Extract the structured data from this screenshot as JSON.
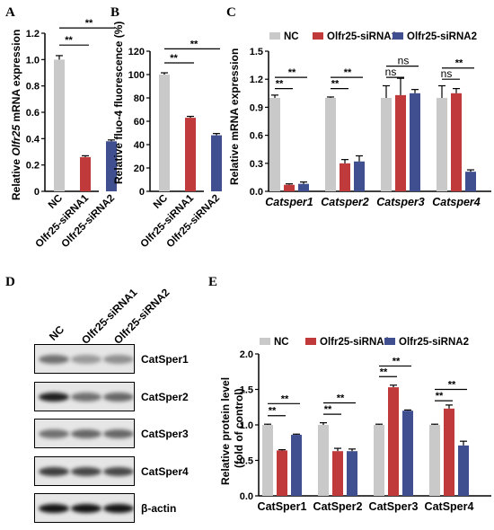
{
  "colors": {
    "nc": "#c9c9c9",
    "si1": "#c0393b",
    "si2": "#3f4f8f",
    "sig": "#000000"
  },
  "panels": {
    "A": "A",
    "B": "B",
    "C": "C",
    "D": "D",
    "E": "E"
  },
  "chart_data": [
    {
      "id": "A",
      "type": "bar",
      "categories": [
        "NC",
        "Olfr25-siRNA1",
        "Olfr25-siRNA2"
      ],
      "values": [
        1.0,
        0.26,
        0.38
      ],
      "errors": [
        0.03,
        0.01,
        0.01
      ],
      "ylabel_pre": "Relative ",
      "ylabel_italic": "Olfr25",
      "ylabel_post": " mRNA expression",
      "ylim": [
        0,
        1.2
      ],
      "yticks": [
        "0",
        "0.2",
        "0.4",
        "0.6",
        "0.8",
        "1.0",
        "1.2"
      ],
      "significance": [
        "**",
        "**"
      ]
    },
    {
      "id": "B",
      "type": "bar",
      "categories": [
        "NC",
        "Olfr25-siRNA1",
        "Olfr25-siRNA2"
      ],
      "values": [
        100,
        63,
        48
      ],
      "errors": [
        1.5,
        1.2,
        1.5
      ],
      "ylabel": "Relative fluo-4 fluorescence (%)",
      "ylim": [
        0,
        120
      ],
      "yticks": [
        "0",
        "20",
        "40",
        "60",
        "80",
        "100",
        "120"
      ],
      "significance": [
        "**",
        "**"
      ]
    },
    {
      "id": "C",
      "type": "bar",
      "categories": [
        "Catsper1",
        "Catsper2",
        "Catsper3",
        "Catsper4"
      ],
      "series": [
        {
          "name": "NC",
          "values": [
            1.0,
            1.0,
            1.0,
            1.0
          ],
          "errors": [
            0.03,
            0.01,
            0.13,
            0.13
          ]
        },
        {
          "name": "Olfr25-siRNA1",
          "values": [
            0.07,
            0.3,
            1.03,
            1.05
          ],
          "errors": [
            0.01,
            0.04,
            0.18,
            0.05
          ]
        },
        {
          "name": "Olfr25-siRNA2",
          "values": [
            0.08,
            0.32,
            1.05,
            0.21
          ],
          "errors": [
            0.02,
            0.06,
            0.04,
            0.02
          ]
        }
      ],
      "ylabel": "Relative mRNA expression",
      "ylim": [
        0,
        1.5
      ],
      "yticks": [
        "0.0",
        "0.3",
        "0.6",
        "0.9",
        "1.2",
        "1.5"
      ],
      "significance": [
        [
          "**",
          "**"
        ],
        [
          "**",
          "**"
        ],
        [
          "ns",
          "ns"
        ],
        [
          "ns",
          "**"
        ]
      ]
    },
    {
      "id": "E",
      "type": "bar",
      "categories": [
        "CatSper1",
        "CatSper2",
        "CatSper3",
        "CatSper4"
      ],
      "series": [
        {
          "name": "NC",
          "values": [
            1.0,
            1.0,
            1.0,
            1.0
          ],
          "errors": [
            0.01,
            0.03,
            0.01,
            0.01
          ]
        },
        {
          "name": "Olfr25-siRNA1",
          "values": [
            0.64,
            0.63,
            1.53,
            1.23
          ],
          "errors": [
            0.01,
            0.04,
            0.03,
            0.05
          ]
        },
        {
          "name": "Olfr25-siRNA2",
          "values": [
            0.86,
            0.63,
            1.2,
            0.71
          ],
          "errors": [
            0.01,
            0.03,
            0.01,
            0.06
          ]
        }
      ],
      "ylabel_line1": "Relative protein level",
      "ylabel_line2": "(fold of control)",
      "ylim": [
        0,
        2.0
      ],
      "yticks": [
        "0.0",
        "0.5",
        "1.0",
        "1.5",
        "2.0"
      ],
      "significance": [
        [
          "**",
          "**"
        ],
        [
          "**",
          "**"
        ],
        [
          "**",
          "**"
        ],
        [
          "**",
          "**"
        ]
      ]
    }
  ],
  "blot": {
    "lanes": [
      "NC",
      "Olfr25-siRNA1",
      "Olfr25-siRNA2"
    ],
    "bands": [
      {
        "name": "CatSper1",
        "intensity": [
          0.55,
          0.35,
          0.4
        ]
      },
      {
        "name": "CatSper2",
        "intensity": [
          0.95,
          0.55,
          0.6
        ]
      },
      {
        "name": "CatSper3",
        "intensity": [
          0.55,
          0.6,
          0.6
        ]
      },
      {
        "name": "CatSper4",
        "intensity": [
          0.8,
          0.75,
          0.75
        ]
      },
      {
        "name": "β-actin",
        "intensity": [
          1.0,
          1.0,
          1.0
        ]
      }
    ]
  }
}
